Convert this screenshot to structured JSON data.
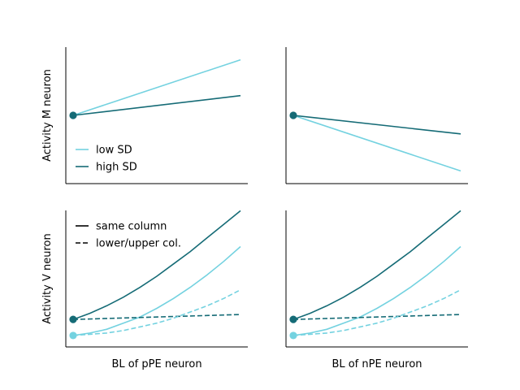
{
  "colors": {
    "low": "#74d2e0",
    "high": "#156b76"
  },
  "chart_data": [
    {
      "type": "line",
      "panel": "top-left",
      "ylabel": "Activity M neuron",
      "xlabel": "",
      "xlim": [
        0,
        1
      ],
      "ylim": [
        0,
        1
      ],
      "legend": {
        "placement": "lower-left",
        "entries": [
          {
            "label": "low SD",
            "color": "low",
            "dash": false
          },
          {
            "label": "high SD",
            "color": "high",
            "dash": false
          }
        ]
      },
      "series": [
        {
          "color": "low",
          "dash": false,
          "x": [
            0,
            1
          ],
          "y": [
            0.5,
            0.95
          ]
        },
        {
          "color": "high",
          "dash": false,
          "x": [
            0,
            1
          ],
          "y": [
            0.5,
            0.66
          ]
        }
      ],
      "markers": [
        {
          "x": 0,
          "y": 0.5,
          "color": "high"
        }
      ]
    },
    {
      "type": "line",
      "panel": "top-right",
      "ylabel": "",
      "xlabel": "",
      "xlim": [
        0,
        1
      ],
      "ylim": [
        0,
        1
      ],
      "series": [
        {
          "color": "low",
          "dash": false,
          "x": [
            0,
            1
          ],
          "y": [
            0.5,
            0.05
          ]
        },
        {
          "color": "high",
          "dash": false,
          "x": [
            0,
            1
          ],
          "y": [
            0.5,
            0.35
          ]
        }
      ],
      "markers": [
        {
          "x": 0,
          "y": 0.5,
          "color": "high"
        }
      ]
    },
    {
      "type": "line",
      "panel": "bottom-left",
      "ylabel": "Activity V neuron",
      "xlabel": "BL of pPE neuron",
      "xlim": [
        0,
        1
      ],
      "ylim": [
        0,
        1
      ],
      "legend": {
        "placement": "upper-left",
        "entries": [
          {
            "label": "same column",
            "color": "black",
            "dash": false
          },
          {
            "label": "lower/upper col.",
            "color": "black",
            "dash": true
          }
        ]
      },
      "series": [
        {
          "color": "high",
          "dash": false,
          "x": [
            0,
            0.1,
            0.2,
            0.3,
            0.4,
            0.5,
            0.6,
            0.7,
            0.8,
            0.9,
            1.0
          ],
          "y": [
            0.17,
            0.22,
            0.28,
            0.35,
            0.43,
            0.52,
            0.62,
            0.72,
            0.83,
            0.94,
            1.05
          ]
        },
        {
          "color": "low",
          "dash": false,
          "x": [
            0,
            0.1,
            0.2,
            0.3,
            0.4,
            0.5,
            0.6,
            0.7,
            0.8,
            0.9,
            1.0
          ],
          "y": [
            0.04,
            0.06,
            0.09,
            0.14,
            0.19,
            0.26,
            0.34,
            0.43,
            0.53,
            0.64,
            0.76
          ]
        },
        {
          "color": "high",
          "dash": true,
          "x": [
            0,
            1
          ],
          "y": [
            0.17,
            0.21
          ]
        },
        {
          "color": "low",
          "dash": true,
          "x": [
            0,
            0.1,
            0.2,
            0.3,
            0.4,
            0.5,
            0.6,
            0.7,
            0.8,
            0.9,
            1.0
          ],
          "y": [
            0.04,
            0.05,
            0.06,
            0.08,
            0.11,
            0.14,
            0.18,
            0.23,
            0.28,
            0.34,
            0.41
          ]
        }
      ],
      "markers": [
        {
          "x": 0,
          "y": 0.17,
          "color": "high"
        },
        {
          "x": 0,
          "y": 0.04,
          "color": "low"
        }
      ]
    },
    {
      "type": "line",
      "panel": "bottom-right",
      "ylabel": "",
      "xlabel": "BL of nPE neuron",
      "xlim": [
        0,
        1
      ],
      "ylim": [
        0,
        1
      ],
      "series": [
        {
          "color": "high",
          "dash": false,
          "x": [
            0,
            0.1,
            0.2,
            0.3,
            0.4,
            0.5,
            0.6,
            0.7,
            0.8,
            0.9,
            1.0
          ],
          "y": [
            0.17,
            0.22,
            0.28,
            0.35,
            0.43,
            0.52,
            0.62,
            0.72,
            0.83,
            0.94,
            1.05
          ]
        },
        {
          "color": "low",
          "dash": false,
          "x": [
            0,
            0.1,
            0.2,
            0.3,
            0.4,
            0.5,
            0.6,
            0.7,
            0.8,
            0.9,
            1.0
          ],
          "y": [
            0.04,
            0.06,
            0.09,
            0.14,
            0.19,
            0.26,
            0.34,
            0.43,
            0.53,
            0.64,
            0.76
          ]
        },
        {
          "color": "high",
          "dash": true,
          "x": [
            0,
            1
          ],
          "y": [
            0.17,
            0.21
          ]
        },
        {
          "color": "low",
          "dash": true,
          "x": [
            0,
            0.1,
            0.2,
            0.3,
            0.4,
            0.5,
            0.6,
            0.7,
            0.8,
            0.9,
            1.0
          ],
          "y": [
            0.04,
            0.05,
            0.06,
            0.08,
            0.11,
            0.14,
            0.18,
            0.23,
            0.28,
            0.34,
            0.41
          ]
        }
      ],
      "markers": [
        {
          "x": 0,
          "y": 0.17,
          "color": "high"
        },
        {
          "x": 0,
          "y": 0.04,
          "color": "low"
        }
      ]
    }
  ]
}
